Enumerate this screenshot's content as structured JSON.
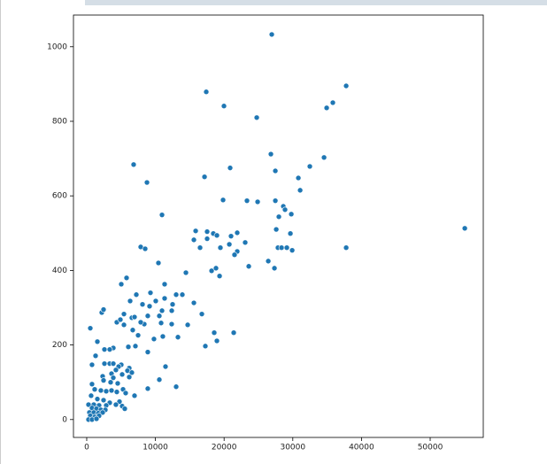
{
  "chart_data": {
    "type": "scatter",
    "color": "#1f77b4",
    "x": [
      26940,
      17400,
      19980,
      24750,
      37770,
      35830,
      34930,
      6830,
      20880,
      26810,
      27460,
      32480,
      34550,
      8770,
      17150,
      30810,
      31070,
      10960,
      23330,
      24880,
      19850,
      27460,
      28620,
      28870,
      29780,
      27970,
      27590,
      29650,
      27840,
      28360,
      29130,
      29910,
      37770,
      55040,
      15860,
      17530,
      18430,
      18950,
      21910,
      21010,
      15600,
      17530,
      19460,
      20760,
      21910,
      21520,
      23070,
      16500,
      26430,
      27330,
      23590,
      18180,
      18820,
      19340,
      7860,
      8510,
      10440,
      14440,
      5800,
      5030,
      11340,
      7220,
      9280,
      13020,
      13920,
      10050,
      11340,
      12500,
      6320,
      8120,
      9150,
      10960,
      12380,
      15600,
      16760,
      5420,
      2190,
      2450,
      6570,
      6960,
      8890,
      10570,
      4380,
      4900,
      5420,
      8380,
      7860,
      14700,
      12370,
      10830,
      6700,
      520,
      11080,
      7480,
      9790,
      13280,
      18560,
      21400,
      1550,
      17270,
      18950,
      7090,
      3870,
      2580,
      3350,
      6060,
      8890,
      1290,
      5030,
      770,
      2580,
      3350,
      3870,
      4640,
      6190,
      11470,
      4250,
      5930,
      3610,
      5160,
      6570,
      2320,
      3870,
      6190,
      2450,
      3480,
      4510,
      10570,
      770,
      1160,
      2060,
      2840,
      3610,
      4380,
      5290,
      6960,
      8890,
      13020,
      5670,
      640,
      1550,
      2450,
      3350,
      4770,
      260,
      1030,
      1800,
      2840,
      4250,
      5160,
      5540,
      770,
      1420,
      2060,
      2710,
      390,
      1030,
      1680,
      2320,
      520,
      1160,
      1800,
      260,
      770,
      1420
    ],
    "y": [
      1033,
      879,
      841,
      810,
      895,
      850,
      836,
      684,
      675,
      712,
      667,
      679,
      703,
      636,
      651,
      648,
      615,
      549,
      587,
      584,
      589,
      587,
      572,
      563,
      551,
      544,
      510,
      499,
      461,
      461,
      461,
      454,
      461,
      513,
      506,
      504,
      499,
      494,
      501,
      492,
      482,
      485,
      461,
      470,
      451,
      442,
      475,
      461,
      425,
      406,
      411,
      399,
      406,
      385,
      463,
      458,
      420,
      394,
      380,
      363,
      363,
      335,
      340,
      335,
      335,
      318,
      325,
      309,
      318,
      309,
      304,
      292,
      292,
      313,
      283,
      283,
      287,
      295,
      273,
      275,
      278,
      278,
      261,
      268,
      254,
      256,
      261,
      254,
      256,
      259,
      240,
      245,
      223,
      226,
      216,
      221,
      233,
      233,
      209,
      197,
      211,
      197,
      192,
      188,
      188,
      195,
      181,
      171,
      147,
      147,
      150,
      150,
      150,
      142,
      138,
      142,
      133,
      131,
      123,
      121,
      126,
      116,
      112,
      114,
      105,
      100,
      97,
      107,
      95,
      81,
      78,
      76,
      78,
      74,
      81,
      64,
      83,
      88,
      71,
      64,
      55,
      52,
      45,
      48,
      40,
      40,
      38,
      38,
      40,
      36,
      29,
      31,
      29,
      26,
      26,
      19,
      19,
      17,
      19,
      10,
      7,
      10,
      0,
      0,
      2
    ],
    "xlim": [
      -1930,
      57730
    ],
    "ylim": [
      -48,
      1085
    ],
    "xticks": [
      0,
      10000,
      20000,
      30000,
      40000,
      50000
    ],
    "yticks": [
      0,
      200,
      400,
      600,
      800,
      1000
    ]
  }
}
